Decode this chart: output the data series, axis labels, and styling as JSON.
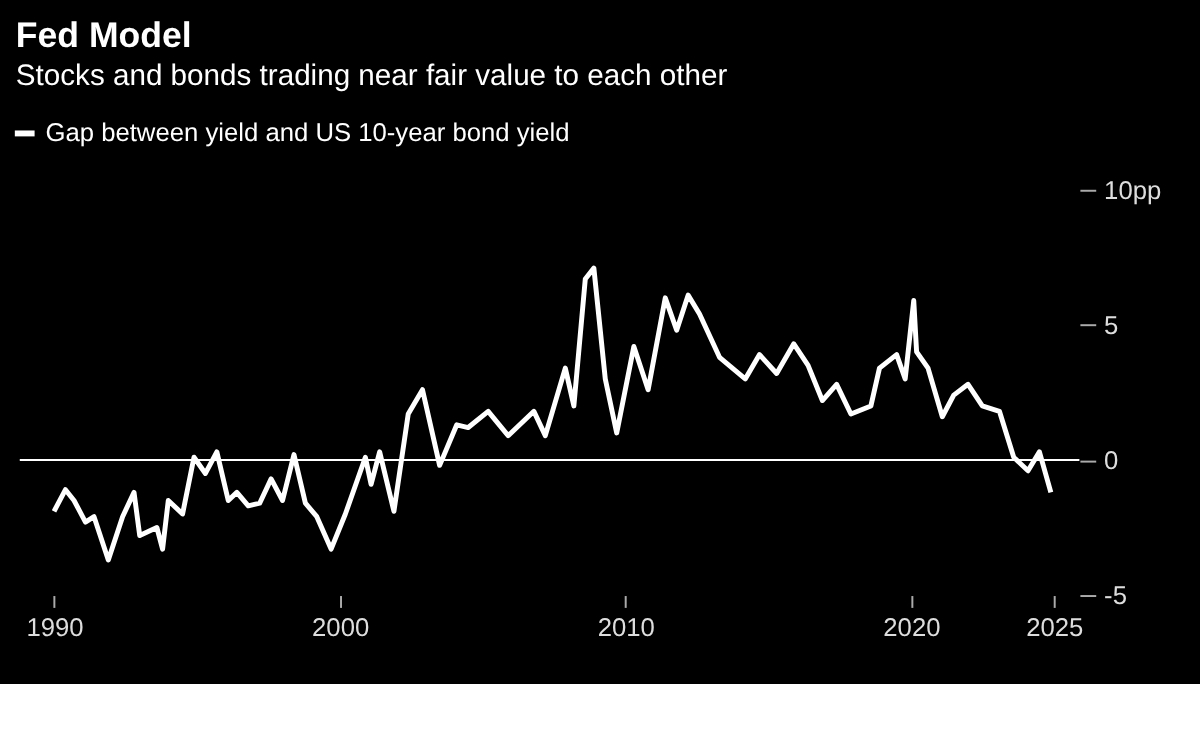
{
  "chart_data": {
    "type": "line",
    "title": "Fed Model",
    "subtitle": "Stocks and bonds trading near fair value to each other",
    "x": [
      1990.0,
      1990.4,
      1990.7,
      1991.1,
      1991.4,
      1991.9,
      1992.4,
      1992.8,
      1993.0,
      1993.6,
      1993.8,
      1994.0,
      1994.5,
      1994.9,
      1995.3,
      1995.7,
      1996.1,
      1996.4,
      1996.8,
      1997.2,
      1997.6,
      1998.0,
      1998.4,
      1998.8,
      1999.2,
      1999.7,
      2000.2,
      2000.9,
      2001.1,
      2001.4,
      2001.9,
      2002.4,
      2002.9,
      2003.5,
      2004.1,
      2004.5,
      2005.2,
      2005.9,
      2006.8,
      2007.2,
      2007.9,
      2008.2,
      2008.6,
      2008.9,
      2009.3,
      2009.7,
      2010.3,
      2010.8,
      2011.4,
      2011.8,
      2012.2,
      2012.6,
      2013.3,
      2014.2,
      2014.7,
      2015.3,
      2015.9,
      2016.4,
      2016.9,
      2017.4,
      2017.9,
      2018.6,
      2018.9,
      2019.5,
      2019.8,
      2020.1,
      2020.2,
      2020.6,
      2021.1,
      2021.5,
      2022.0,
      2022.5,
      2023.1,
      2023.6,
      2024.1,
      2024.5,
      2024.9
    ],
    "series": [
      {
        "name": "Gap between yield and US 10-year bond yield",
        "color": "#ffffff",
        "values": [
          -1.9,
          -1.1,
          -1.5,
          -2.3,
          -2.1,
          -3.7,
          -2.1,
          -1.2,
          -2.8,
          -2.5,
          -3.3,
          -1.5,
          -2.0,
          0.1,
          -0.5,
          0.3,
          -1.5,
          -1.2,
          -1.7,
          -1.6,
          -0.7,
          -1.5,
          0.2,
          -1.6,
          -2.1,
          -3.3,
          -2.0,
          0.1,
          -0.9,
          0.3,
          -1.9,
          1.7,
          2.6,
          -0.2,
          1.3,
          1.2,
          1.8,
          0.9,
          1.8,
          0.9,
          3.4,
          2.0,
          6.7,
          7.1,
          3.0,
          1.0,
          4.2,
          2.6,
          6.0,
          4.8,
          6.1,
          5.4,
          3.8,
          3.0,
          3.9,
          3.2,
          4.3,
          3.5,
          2.2,
          2.8,
          1.7,
          2.0,
          3.4,
          3.9,
          3.0,
          5.9,
          4.0,
          3.4,
          1.6,
          2.4,
          2.8,
          2.0,
          1.8,
          0.1,
          -0.4,
          0.3,
          -1.2
        ]
      }
    ],
    "xlim": [
      1988.8,
      2025.9
    ],
    "xticks": [
      1990,
      2000,
      2010,
      2020,
      2025
    ],
    "ylim": [
      -5,
      10
    ],
    "yticks": [
      {
        "value": 10,
        "label": "10pp"
      },
      5,
      0,
      -5
    ],
    "ref_lines": [
      {
        "axis": "y",
        "value": 0,
        "label": null,
        "color": "#ffffff"
      }
    ],
    "legend": "top left",
    "grid": false
  }
}
